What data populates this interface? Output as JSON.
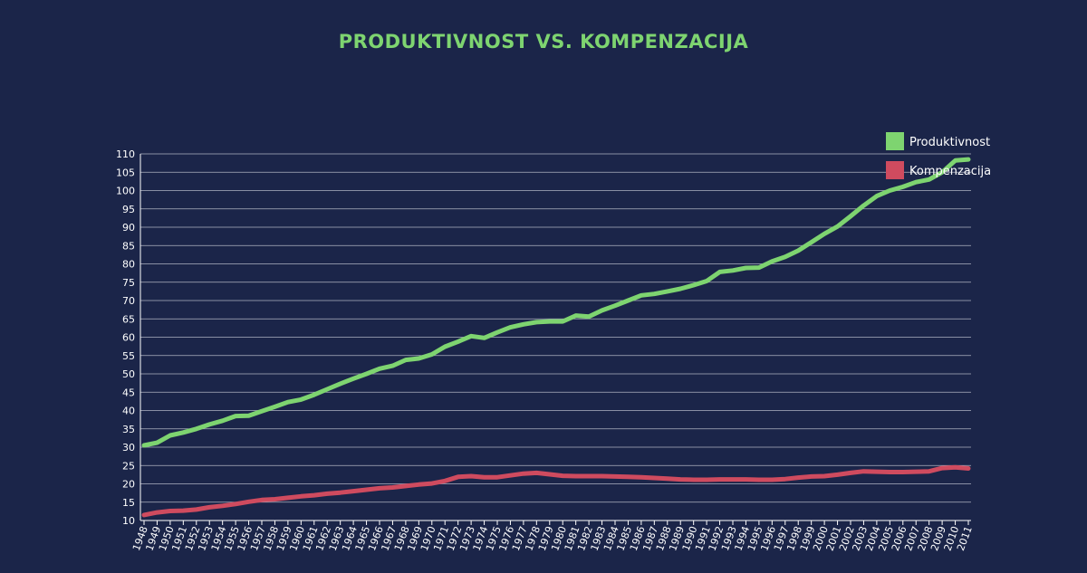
{
  "chart_data": {
    "type": "line",
    "title": "PRODUKTIVNOST VS. KOMPENZACIJA",
    "xlabel": "",
    "ylabel": "",
    "ylim": [
      10,
      110
    ],
    "ystep": 5,
    "grid": true,
    "legend_position": "top-right",
    "colors": {
      "background": "#1b2549",
      "title": "#7ed470",
      "grid": "#c9cdd8",
      "axis": "#ffffff"
    },
    "x": [
      1948,
      1949,
      1950,
      1951,
      1952,
      1953,
      1954,
      1955,
      1956,
      1957,
      1958,
      1959,
      1960,
      1961,
      1962,
      1963,
      1964,
      1965,
      1966,
      1967,
      1968,
      1969,
      1970,
      1971,
      1972,
      1973,
      1974,
      1975,
      1976,
      1977,
      1978,
      1979,
      1980,
      1981,
      1982,
      1983,
      1984,
      1985,
      1986,
      1987,
      1988,
      1989,
      1990,
      1991,
      1992,
      1993,
      1994,
      1995,
      1996,
      1997,
      1998,
      1999,
      2000,
      2001,
      2002,
      2003,
      2004,
      2005,
      2006,
      2007,
      2008,
      2009,
      2010,
      2011
    ],
    "series": [
      {
        "name": "Produktivnost",
        "color": "#7ed470",
        "values": [
          30.5,
          31.2,
          33.2,
          34.0,
          35.0,
          36.2,
          37.2,
          38.5,
          38.6,
          39.8,
          41.0,
          42.3,
          43.0,
          44.3,
          45.8,
          47.3,
          48.7,
          50.0,
          51.4,
          52.2,
          53.8,
          54.2,
          55.3,
          57.4,
          58.8,
          60.3,
          59.8,
          61.3,
          62.7,
          63.5,
          64.1,
          64.3,
          64.3,
          65.9,
          65.6,
          67.3,
          68.6,
          70.0,
          71.4,
          71.8,
          72.5,
          73.2,
          74.2,
          75.3,
          77.8,
          78.2,
          78.9,
          79.0,
          80.7,
          81.9,
          83.6,
          85.9,
          88.2,
          90.2,
          93.0,
          95.9,
          98.5,
          100.0,
          101.0,
          102.3,
          103.0,
          105.0,
          108.2,
          108.5
        ]
      },
      {
        "name": "Kompenzacija",
        "color": "#cf4b5f",
        "values": [
          11.5,
          12.2,
          12.6,
          12.7,
          13.0,
          13.6,
          14.0,
          14.5,
          15.1,
          15.6,
          15.8,
          16.2,
          16.6,
          16.9,
          17.3,
          17.6,
          18.0,
          18.4,
          18.8,
          19.0,
          19.4,
          19.8,
          20.1,
          20.8,
          21.9,
          22.1,
          21.8,
          21.8,
          22.3,
          22.8,
          23.0,
          22.6,
          22.2,
          22.1,
          22.1,
          22.1,
          22.0,
          21.9,
          21.8,
          21.6,
          21.4,
          21.2,
          21.1,
          21.1,
          21.2,
          21.2,
          21.2,
          21.1,
          21.1,
          21.3,
          21.7,
          22.0,
          22.1,
          22.5,
          23.0,
          23.4,
          23.3,
          23.2,
          23.2,
          23.3,
          23.4,
          24.3,
          24.5,
          24.2
        ]
      }
    ]
  }
}
